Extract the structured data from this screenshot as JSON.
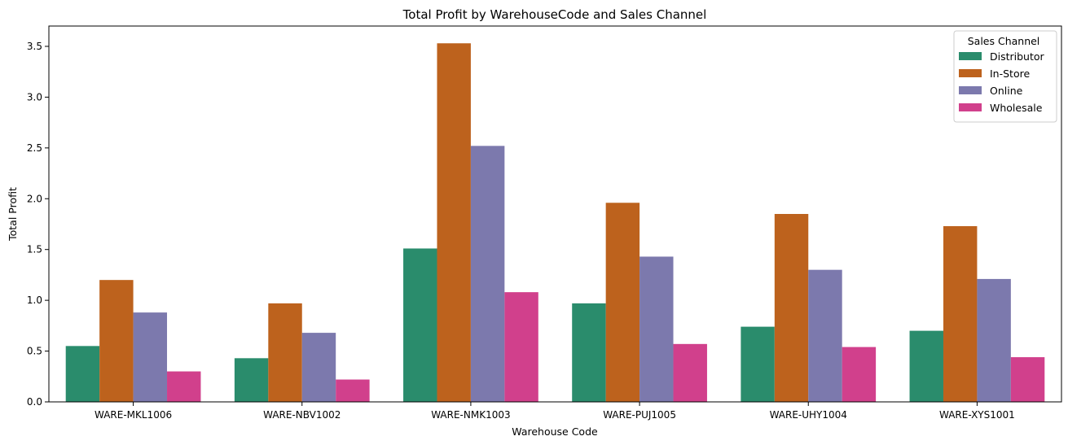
{
  "chart_data": {
    "type": "bar",
    "title": "Total Profit by WarehouseCode and Sales Channel",
    "xlabel": "Warehouse Code",
    "ylabel": "Total Profit",
    "ylim": [
      0,
      3.7
    ],
    "yticks": [
      0.0,
      0.5,
      1.0,
      1.5,
      2.0,
      2.5,
      3.0,
      3.5
    ],
    "ytick_labels": [
      "0.0",
      "0.5",
      "1.0",
      "1.5",
      "2.0",
      "2.5",
      "3.0",
      "3.5"
    ],
    "categories": [
      "WARE-MKL1006",
      "WARE-NBV1002",
      "WARE-NMK1003",
      "WARE-PUJ1005",
      "WARE-UHY1004",
      "WARE-XYS1001"
    ],
    "legend_title": "Sales Channel",
    "legend_position": "top-right",
    "grid": false,
    "series": [
      {
        "name": "Distributor",
        "color": "#2a8c6c",
        "values": [
          0.55,
          0.43,
          1.51,
          0.97,
          0.74,
          0.7
        ]
      },
      {
        "name": "In-Store",
        "color": "#bd621d",
        "values": [
          1.2,
          0.97,
          3.53,
          1.96,
          1.85,
          1.73
        ]
      },
      {
        "name": "Online",
        "color": "#7c79ad",
        "values": [
          0.88,
          0.68,
          2.52,
          1.43,
          1.3,
          1.21
        ]
      },
      {
        "name": "Wholesale",
        "color": "#d1408c",
        "values": [
          0.3,
          0.22,
          1.08,
          0.57,
          0.54,
          0.44
        ]
      }
    ]
  }
}
